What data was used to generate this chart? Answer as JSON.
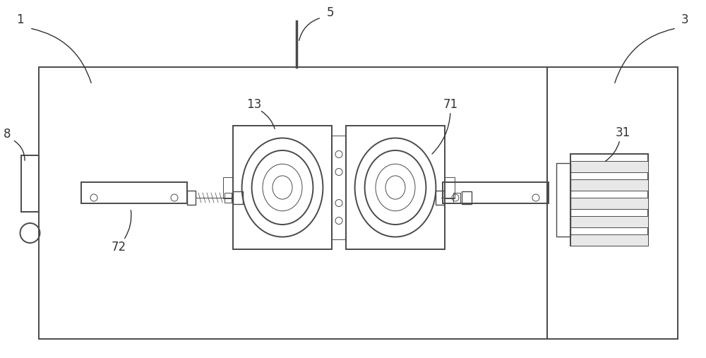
{
  "bg_color": "#ffffff",
  "line_color": "#4a4a4a",
  "label_color": "#333333",
  "fig_width": 10.0,
  "fig_height": 5.07,
  "dpi": 100,
  "lw_main": 1.4,
  "lw_thin": 0.7,
  "lw_med": 1.0,
  "fs_label": 12
}
